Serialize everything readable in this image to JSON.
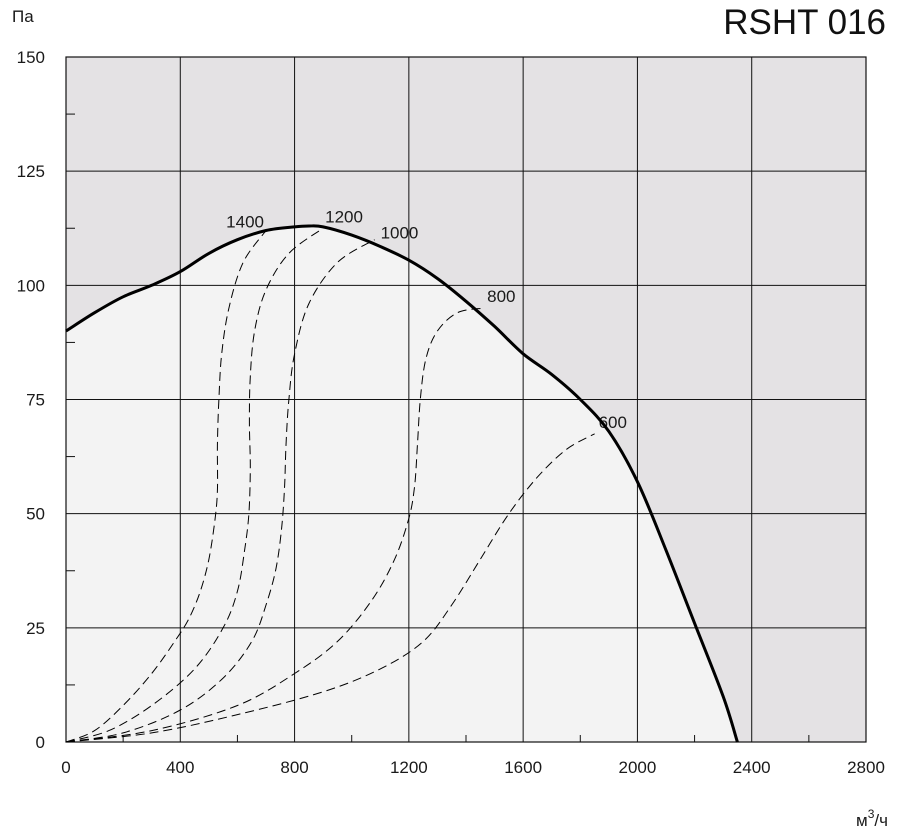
{
  "chart_data": {
    "type": "line",
    "title": "RSHT 016",
    "ylabel": "Па",
    "xlabel": "м³/ч",
    "xlabel_base": "м",
    "xlabel_sup": "3",
    "xlabel_tail": "/ч",
    "xlim": [
      0,
      2800
    ],
    "ylim": [
      0,
      150
    ],
    "x_ticks": [
      0,
      400,
      800,
      1200,
      1600,
      2000,
      2400,
      2800
    ],
    "x_tick_labels": [
      "0",
      "400",
      "800",
      "1200",
      "1600",
      "2000",
      "2400",
      "2800"
    ],
    "y_ticks": [
      0,
      25,
      50,
      75,
      100,
      125,
      150
    ],
    "y_tick_labels": [
      "0",
      "25",
      "50",
      "75",
      "100",
      "125",
      "150"
    ],
    "grid": true,
    "colors": {
      "plot_background": "#e4e2e4",
      "operating_area": "#f3f3f3",
      "grid": "#111111",
      "curve": "#000000"
    },
    "fan_curve": {
      "x": [
        0,
        100,
        200,
        300,
        400,
        500,
        600,
        700,
        800,
        850,
        900,
        1000,
        1100,
        1200,
        1300,
        1400,
        1500,
        1600,
        1700,
        1800,
        1900,
        2000,
        2100,
        2200,
        2300,
        2350
      ],
      "y": [
        90,
        94,
        97.5,
        100,
        103,
        107,
        110,
        112,
        112.8,
        113,
        112.8,
        111,
        108.5,
        105.5,
        101.5,
        96.5,
        91,
        85,
        80.5,
        75,
        68,
        57,
        42,
        26,
        10,
        0
      ]
    },
    "speed_curves": [
      {
        "label": "1400",
        "x": [
          0,
          100,
          200,
          300,
          380,
          430,
          470,
          500,
          520,
          530,
          530,
          535,
          545,
          570,
          620,
          700
        ],
        "y": [
          0,
          2.5,
          8,
          15,
          22,
          27,
          33,
          40,
          48,
          55,
          65,
          75,
          85,
          95,
          105,
          112
        ]
      },
      {
        "label": "1200",
        "x": [
          0,
          150,
          300,
          450,
          550,
          600,
          625,
          640,
          645,
          642,
          645,
          660,
          700,
          780,
          900
        ],
        "y": [
          0,
          2.5,
          8,
          16,
          25,
          33,
          42,
          50,
          60,
          70,
          80,
          90,
          99,
          107,
          112.5
        ]
      },
      {
        "label": "1000",
        "x": [
          0,
          200,
          400,
          550,
          650,
          700,
          735,
          755,
          765,
          770,
          780,
          800,
          850,
          950,
          1080
        ],
        "y": [
          0,
          2,
          7,
          14,
          22,
          30,
          38,
          47,
          56,
          65,
          75,
          85,
          96,
          105,
          110
        ]
      },
      {
        "label": "800",
        "x": [
          0,
          300,
          600,
          800,
          950,
          1070,
          1150,
          1200,
          1220,
          1230,
          1240,
          1260,
          1300,
          1370,
          1460
        ],
        "y": [
          0,
          2.5,
          8,
          15,
          22,
          31,
          40,
          49,
          56,
          65,
          75,
          84,
          90,
          94,
          95
        ]
      },
      {
        "label": "600",
        "x": [
          0,
          300,
          600,
          900,
          1100,
          1250,
          1350,
          1450,
          1550,
          1650,
          1750,
          1850
        ],
        "y": [
          0,
          2,
          6,
          11,
          16,
          22,
          30,
          40,
          50,
          58,
          64,
          67.5
        ]
      }
    ]
  }
}
